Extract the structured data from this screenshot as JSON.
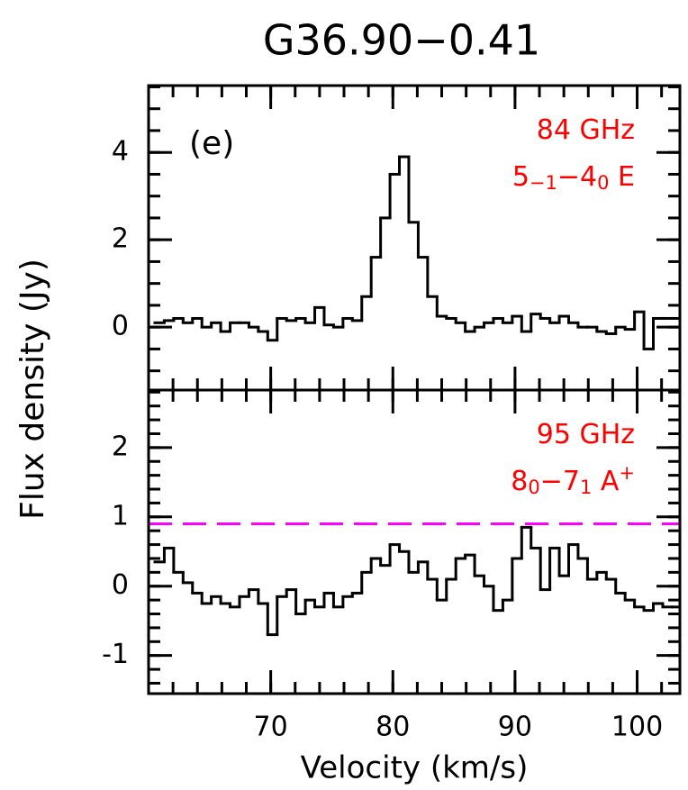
{
  "figure": {
    "title": "G36.90−0.41",
    "ylabel": "Flux density (Jy)",
    "xlabel": "Velocity (km/s)"
  },
  "chart_data": [
    {
      "type": "step",
      "label": "(e)",
      "annotation_lines": [
        [
          {
            "text": "84 GHz"
          }
        ],
        [
          {
            "text": "5"
          },
          {
            "sub": "−1"
          },
          {
            "text": "−4"
          },
          {
            "sub": "0"
          },
          {
            "text": " E"
          }
        ]
      ],
      "annotation_color": "#ff0000",
      "xlim": [
        60,
        103.5
      ],
      "xticks": [
        70,
        80,
        90,
        100
      ],
      "ylim": [
        -1.44,
        5.53
      ],
      "yticks": [
        0,
        2,
        4
      ],
      "x": [
        60.9,
        61.67,
        62.44,
        63.21,
        63.98,
        64.75,
        65.52,
        66.29,
        67.06,
        67.83,
        68.6,
        69.37,
        70.14,
        70.91,
        71.68,
        72.45,
        73.22,
        73.99,
        74.76,
        75.53,
        76.3,
        77.07,
        77.84,
        78.61,
        79.38,
        80.15,
        80.92,
        81.69,
        82.46,
        83.23,
        84,
        84.77,
        85.54,
        86.31,
        87.08,
        87.85,
        88.62,
        89.39,
        90.16,
        90.93,
        91.7,
        92.47,
        93.24,
        94.01,
        94.78,
        95.55,
        96.32,
        97.09,
        97.86,
        98.63,
        99.4,
        100.17,
        100.94,
        101.71,
        102.48,
        103.25
      ],
      "series": [
        {
          "color": "#000000",
          "values": [
            0.1,
            0.15,
            0.2,
            0.1,
            0.2,
            0.0,
            0.1,
            -0.1,
            0.1,
            0.1,
            0.0,
            -0.1,
            -0.3,
            0.2,
            0.15,
            0.2,
            0.1,
            0.45,
            0.05,
            0.0,
            0.2,
            0.15,
            0.7,
            1.6,
            2.5,
            3.5,
            3.9,
            2.4,
            1.6,
            0.7,
            0.25,
            0.2,
            0.1,
            -0.1,
            0.0,
            0.1,
            0.2,
            0.1,
            0.25,
            -0.1,
            0.3,
            0.2,
            0.1,
            0.25,
            0.1,
            0.0,
            0.0,
            -0.1,
            -0.15,
            0.0,
            -0.05,
            0.35,
            -0.5,
            0.2,
            0.2,
            0.2
          ]
        }
      ]
    },
    {
      "type": "step",
      "annotation_lines": [
        [
          {
            "text": "95 GHz"
          }
        ],
        [
          {
            "text": "8"
          },
          {
            "sub": "0"
          },
          {
            "text": "−7"
          },
          {
            "sub": "1"
          },
          {
            "text": " A"
          },
          {
            "sup": "+"
          }
        ]
      ],
      "annotation_color": "#ff0000",
      "hline": {
        "value": 0.9,
        "color": "#ff00ff"
      },
      "xlim": [
        60,
        103.5
      ],
      "xticks": [
        70,
        80,
        90,
        100
      ],
      "ylim": [
        -1.55,
        2.83
      ],
      "yticks": [
        -1,
        0,
        1,
        2
      ],
      "x": [
        60.9,
        61.67,
        62.44,
        63.21,
        63.98,
        64.75,
        65.52,
        66.29,
        67.06,
        67.83,
        68.6,
        69.37,
        70.14,
        70.91,
        71.68,
        72.45,
        73.22,
        73.99,
        74.76,
        75.53,
        76.3,
        77.07,
        77.84,
        78.61,
        79.38,
        80.15,
        80.92,
        81.69,
        82.46,
        83.23,
        84,
        84.77,
        85.54,
        86.31,
        87.08,
        87.85,
        88.62,
        89.39,
        90.16,
        90.93,
        91.7,
        92.47,
        93.24,
        94.01,
        94.78,
        95.55,
        96.32,
        97.09,
        97.86,
        98.63,
        99.4,
        100.17,
        100.94,
        101.71,
        102.48,
        103.25
      ],
      "series": [
        {
          "color": "#000000",
          "values": [
            0.35,
            0.55,
            0.2,
            0.05,
            -0.1,
            -0.25,
            -0.15,
            -0.25,
            -0.3,
            -0.15,
            -0.05,
            -0.25,
            -0.7,
            -0.15,
            -0.05,
            -0.4,
            -0.2,
            -0.3,
            -0.1,
            -0.3,
            -0.15,
            -0.1,
            0.2,
            0.4,
            0.3,
            0.6,
            0.5,
            0.2,
            0.35,
            0.1,
            -0.2,
            0.1,
            0.4,
            0.45,
            0.15,
            0.0,
            -0.35,
            -0.2,
            0.4,
            0.85,
            0.55,
            -0.05,
            0.55,
            0.15,
            0.6,
            0.4,
            0.1,
            0.2,
            0.1,
            -0.1,
            -0.2,
            -0.3,
            -0.35,
            -0.25,
            -0.3,
            -0.3
          ]
        }
      ]
    }
  ]
}
